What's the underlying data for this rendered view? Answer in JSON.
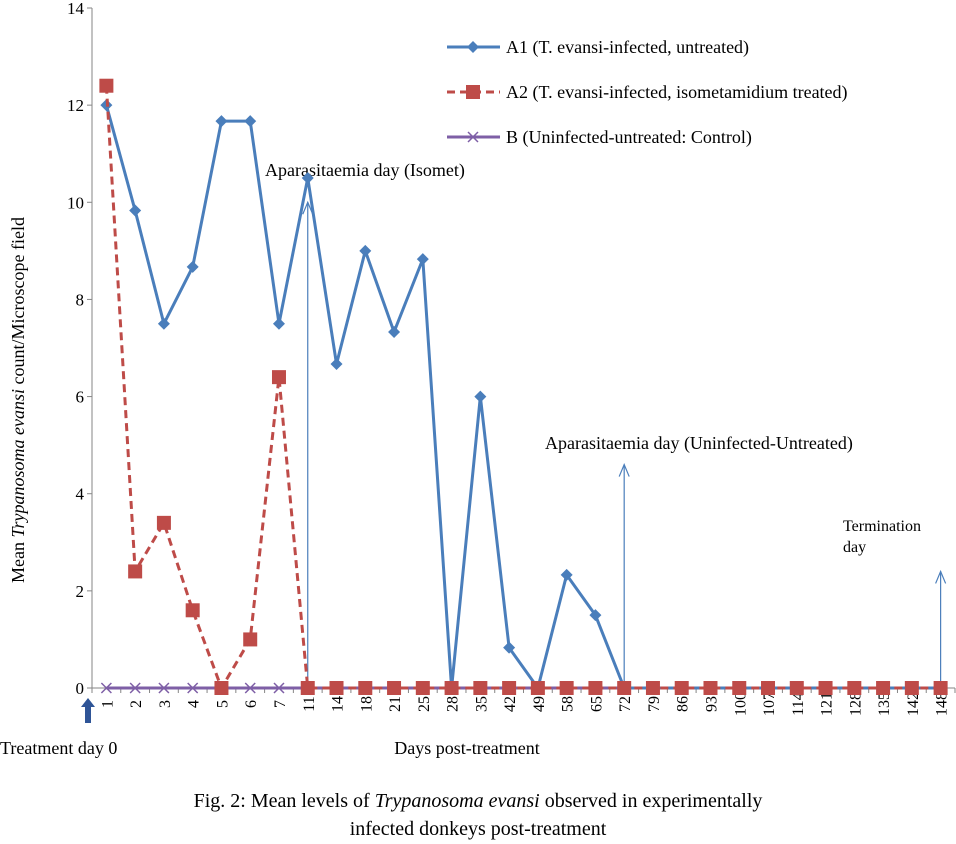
{
  "chart_data": {
    "type": "line",
    "x_categories": [
      "1",
      "2",
      "3",
      "4",
      "5",
      "6",
      "7",
      "11",
      "14",
      "18",
      "21",
      "25",
      "28",
      "35",
      "42",
      "49",
      "58",
      "65",
      "72",
      "79",
      "86",
      "93",
      "100",
      "107",
      "114",
      "121",
      "128",
      "135",
      "142",
      "148"
    ],
    "xlabel": "Days post-treatment",
    "ylabel_prefix": "Mean ",
    "ylabel_italic": "Trypanosoma evansi",
    "ylabel_suffix": " count/Microscope field",
    "ylim": [
      0,
      14
    ],
    "yticks": [
      0,
      2,
      4,
      6,
      8,
      10,
      12,
      14
    ],
    "grid": false,
    "legend_position": "top-right",
    "series": [
      {
        "name": "A1 (T. evansi-infected, untreated)",
        "color": "#4a7ebb",
        "marker": "diamond",
        "line_style": "solid",
        "values": [
          12,
          9.83,
          7.5,
          8.67,
          11.67,
          11.67,
          7.5,
          10.5,
          6.67,
          9,
          7.33,
          8.83,
          0,
          6,
          0.83,
          0,
          2.33,
          1.5,
          0,
          0,
          0,
          0,
          0,
          0,
          0,
          0,
          0,
          0,
          0,
          0
        ]
      },
      {
        "name": "A2 (T. evansi-infected, isometamidium treated)",
        "color": "#be4b48",
        "marker": "square",
        "line_style": "dashed",
        "values": [
          12.4,
          2.4,
          3.4,
          1.6,
          0,
          1,
          6.4,
          0,
          0,
          0,
          0,
          0,
          0,
          0,
          0,
          0,
          0,
          0,
          0,
          0,
          0,
          0,
          0,
          0,
          0,
          0,
          0,
          0,
          0,
          0
        ]
      },
      {
        "name": "B (Uninfected-untreated: Control)",
        "color": "#7e5fa6",
        "marker": "x",
        "line_style": "solid",
        "values": [
          0,
          0,
          0,
          0,
          0,
          0,
          0,
          0,
          0,
          0,
          0,
          0,
          0,
          0,
          0,
          0,
          0,
          0,
          0,
          0,
          0,
          0,
          0,
          0,
          0,
          0,
          0,
          0,
          0,
          0
        ]
      }
    ],
    "annotations": [
      {
        "id": "ann-isomet",
        "lines": [
          "Aparasitaemia day (Isomet)"
        ],
        "x_category": "11",
        "arrow_from_y": 0,
        "arrow_to_y": 10
      },
      {
        "id": "ann-uninfected",
        "lines": [
          "Aparasitaemia day (Uninfected-Untreated)"
        ],
        "x_category": "72",
        "arrow_from_y": 0,
        "arrow_to_y": 4.6
      },
      {
        "id": "ann-termination",
        "lines": [
          "Termination",
          "day"
        ],
        "x_category": "148",
        "arrow_from_y": 0,
        "arrow_to_y": 2.4
      }
    ],
    "treatment_label": "Treatment day 0"
  },
  "caption": {
    "line1_prefix": "Fig. 2: Mean  levels of ",
    "line1_italic": "Trypanosoma evansi",
    "line1_suffix": "  observed  in  experimentally",
    "line2": "infected donkeys  post-treatment"
  }
}
